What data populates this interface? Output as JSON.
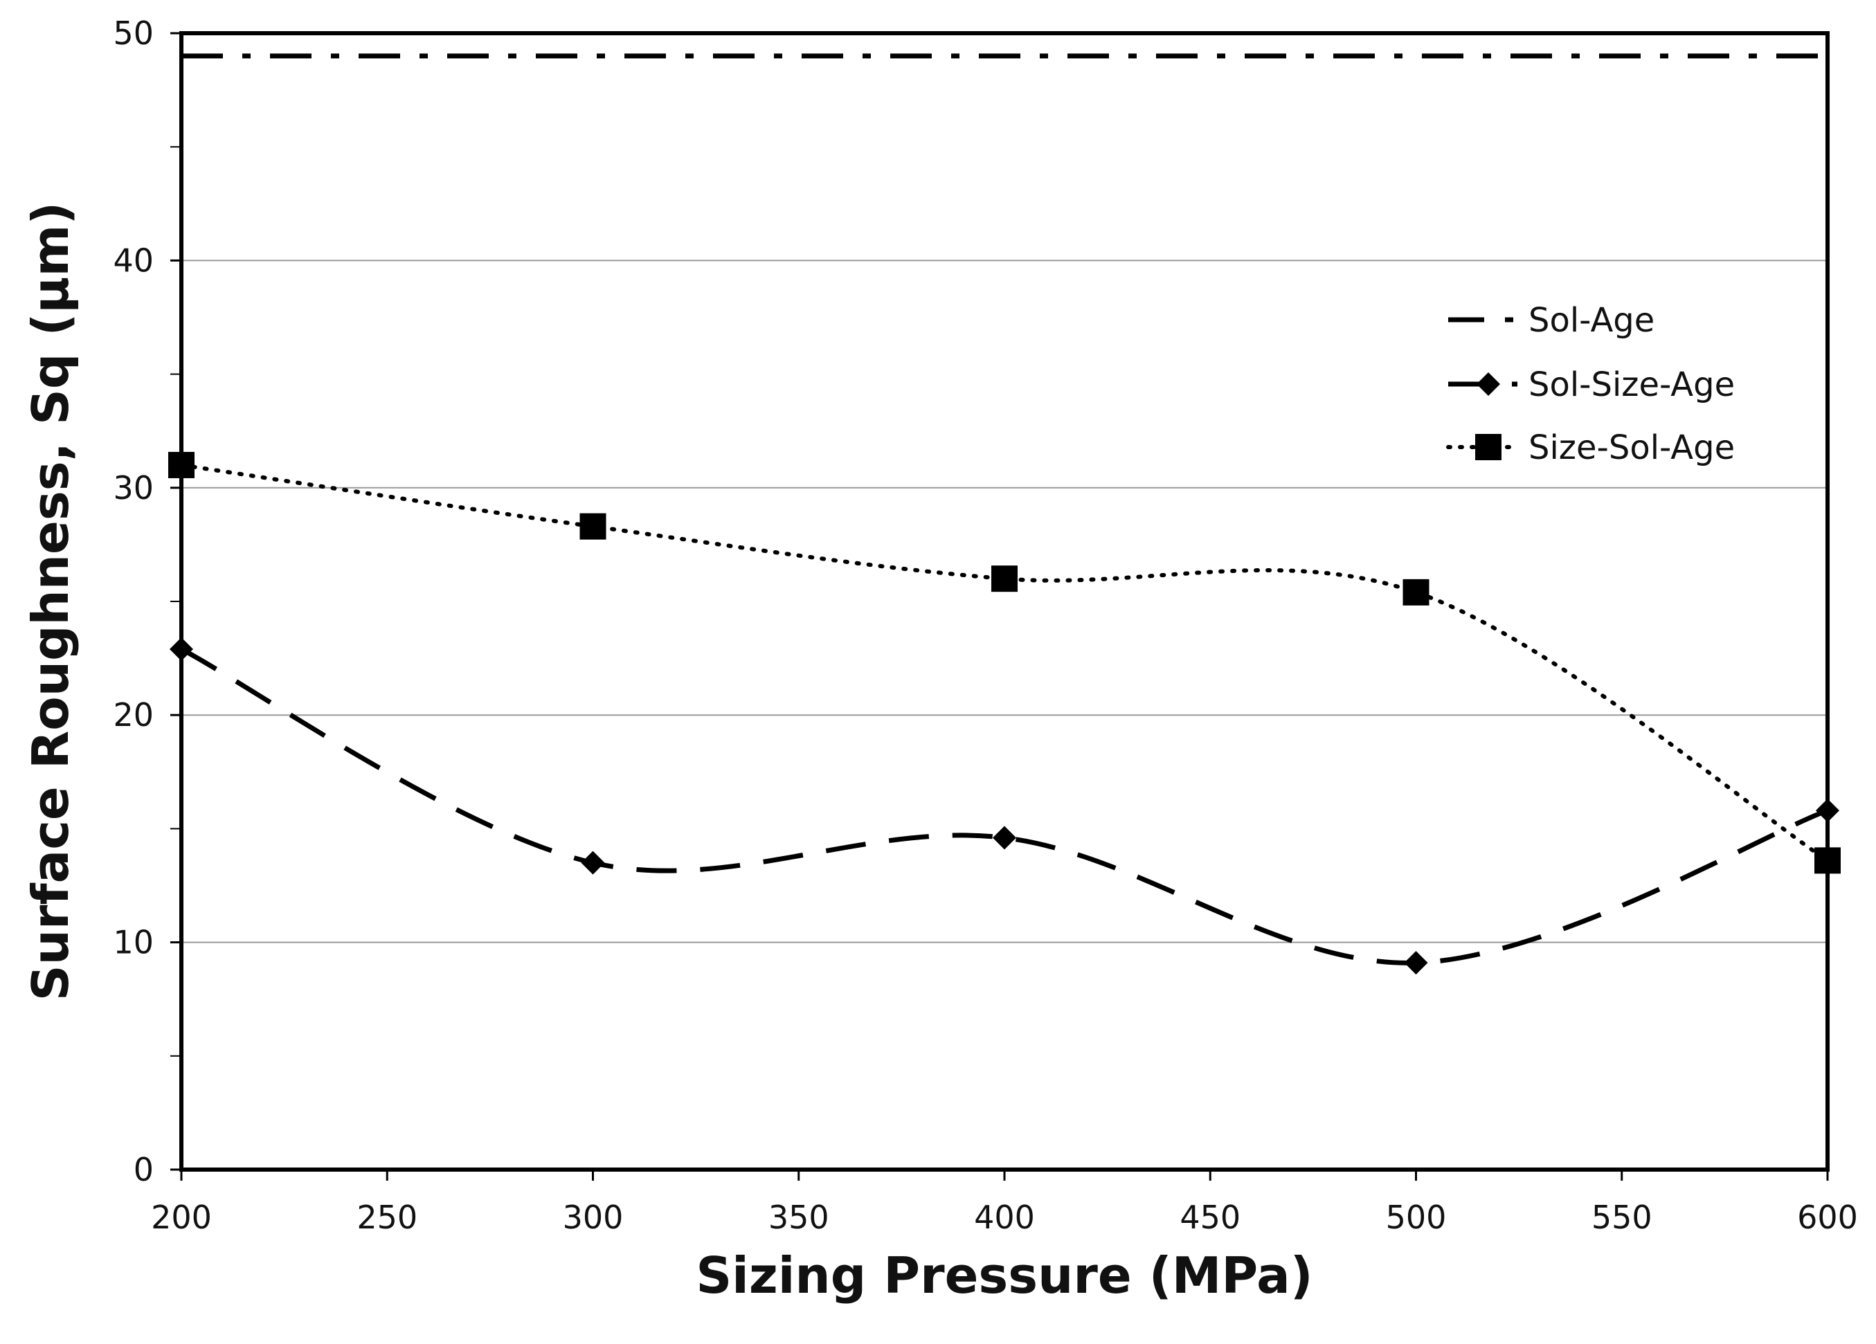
{
  "chart_data": {
    "type": "line",
    "title": "",
    "xlabel": "Sizing Pressure (MPa)",
    "ylabel": "Surface Roughness, Sq (µm)",
    "xlim": [
      200,
      600
    ],
    "ylim": [
      0,
      50
    ],
    "xticks": [
      200,
      250,
      300,
      350,
      400,
      450,
      500,
      550,
      600
    ],
    "yticks": [
      0,
      10,
      20,
      30,
      40,
      50
    ],
    "grid": "horizontal",
    "legend_position": "right",
    "series": [
      {
        "name": "Sol-Age",
        "x": [
          200,
          600
        ],
        "values": [
          49,
          49
        ],
        "style": "dash-dot",
        "marker": "none"
      },
      {
        "name": "Sol-Size-Age",
        "x": [
          200,
          300,
          400,
          500,
          600
        ],
        "values": [
          22.9,
          13.5,
          14.6,
          9.1,
          15.8
        ],
        "style": "dashed",
        "marker": "diamond"
      },
      {
        "name": "Size-Sol-Age",
        "x": [
          200,
          300,
          400,
          500,
          600
        ],
        "values": [
          31.0,
          28.3,
          26.0,
          25.4,
          13.6
        ],
        "style": "dotted",
        "marker": "square"
      }
    ]
  }
}
